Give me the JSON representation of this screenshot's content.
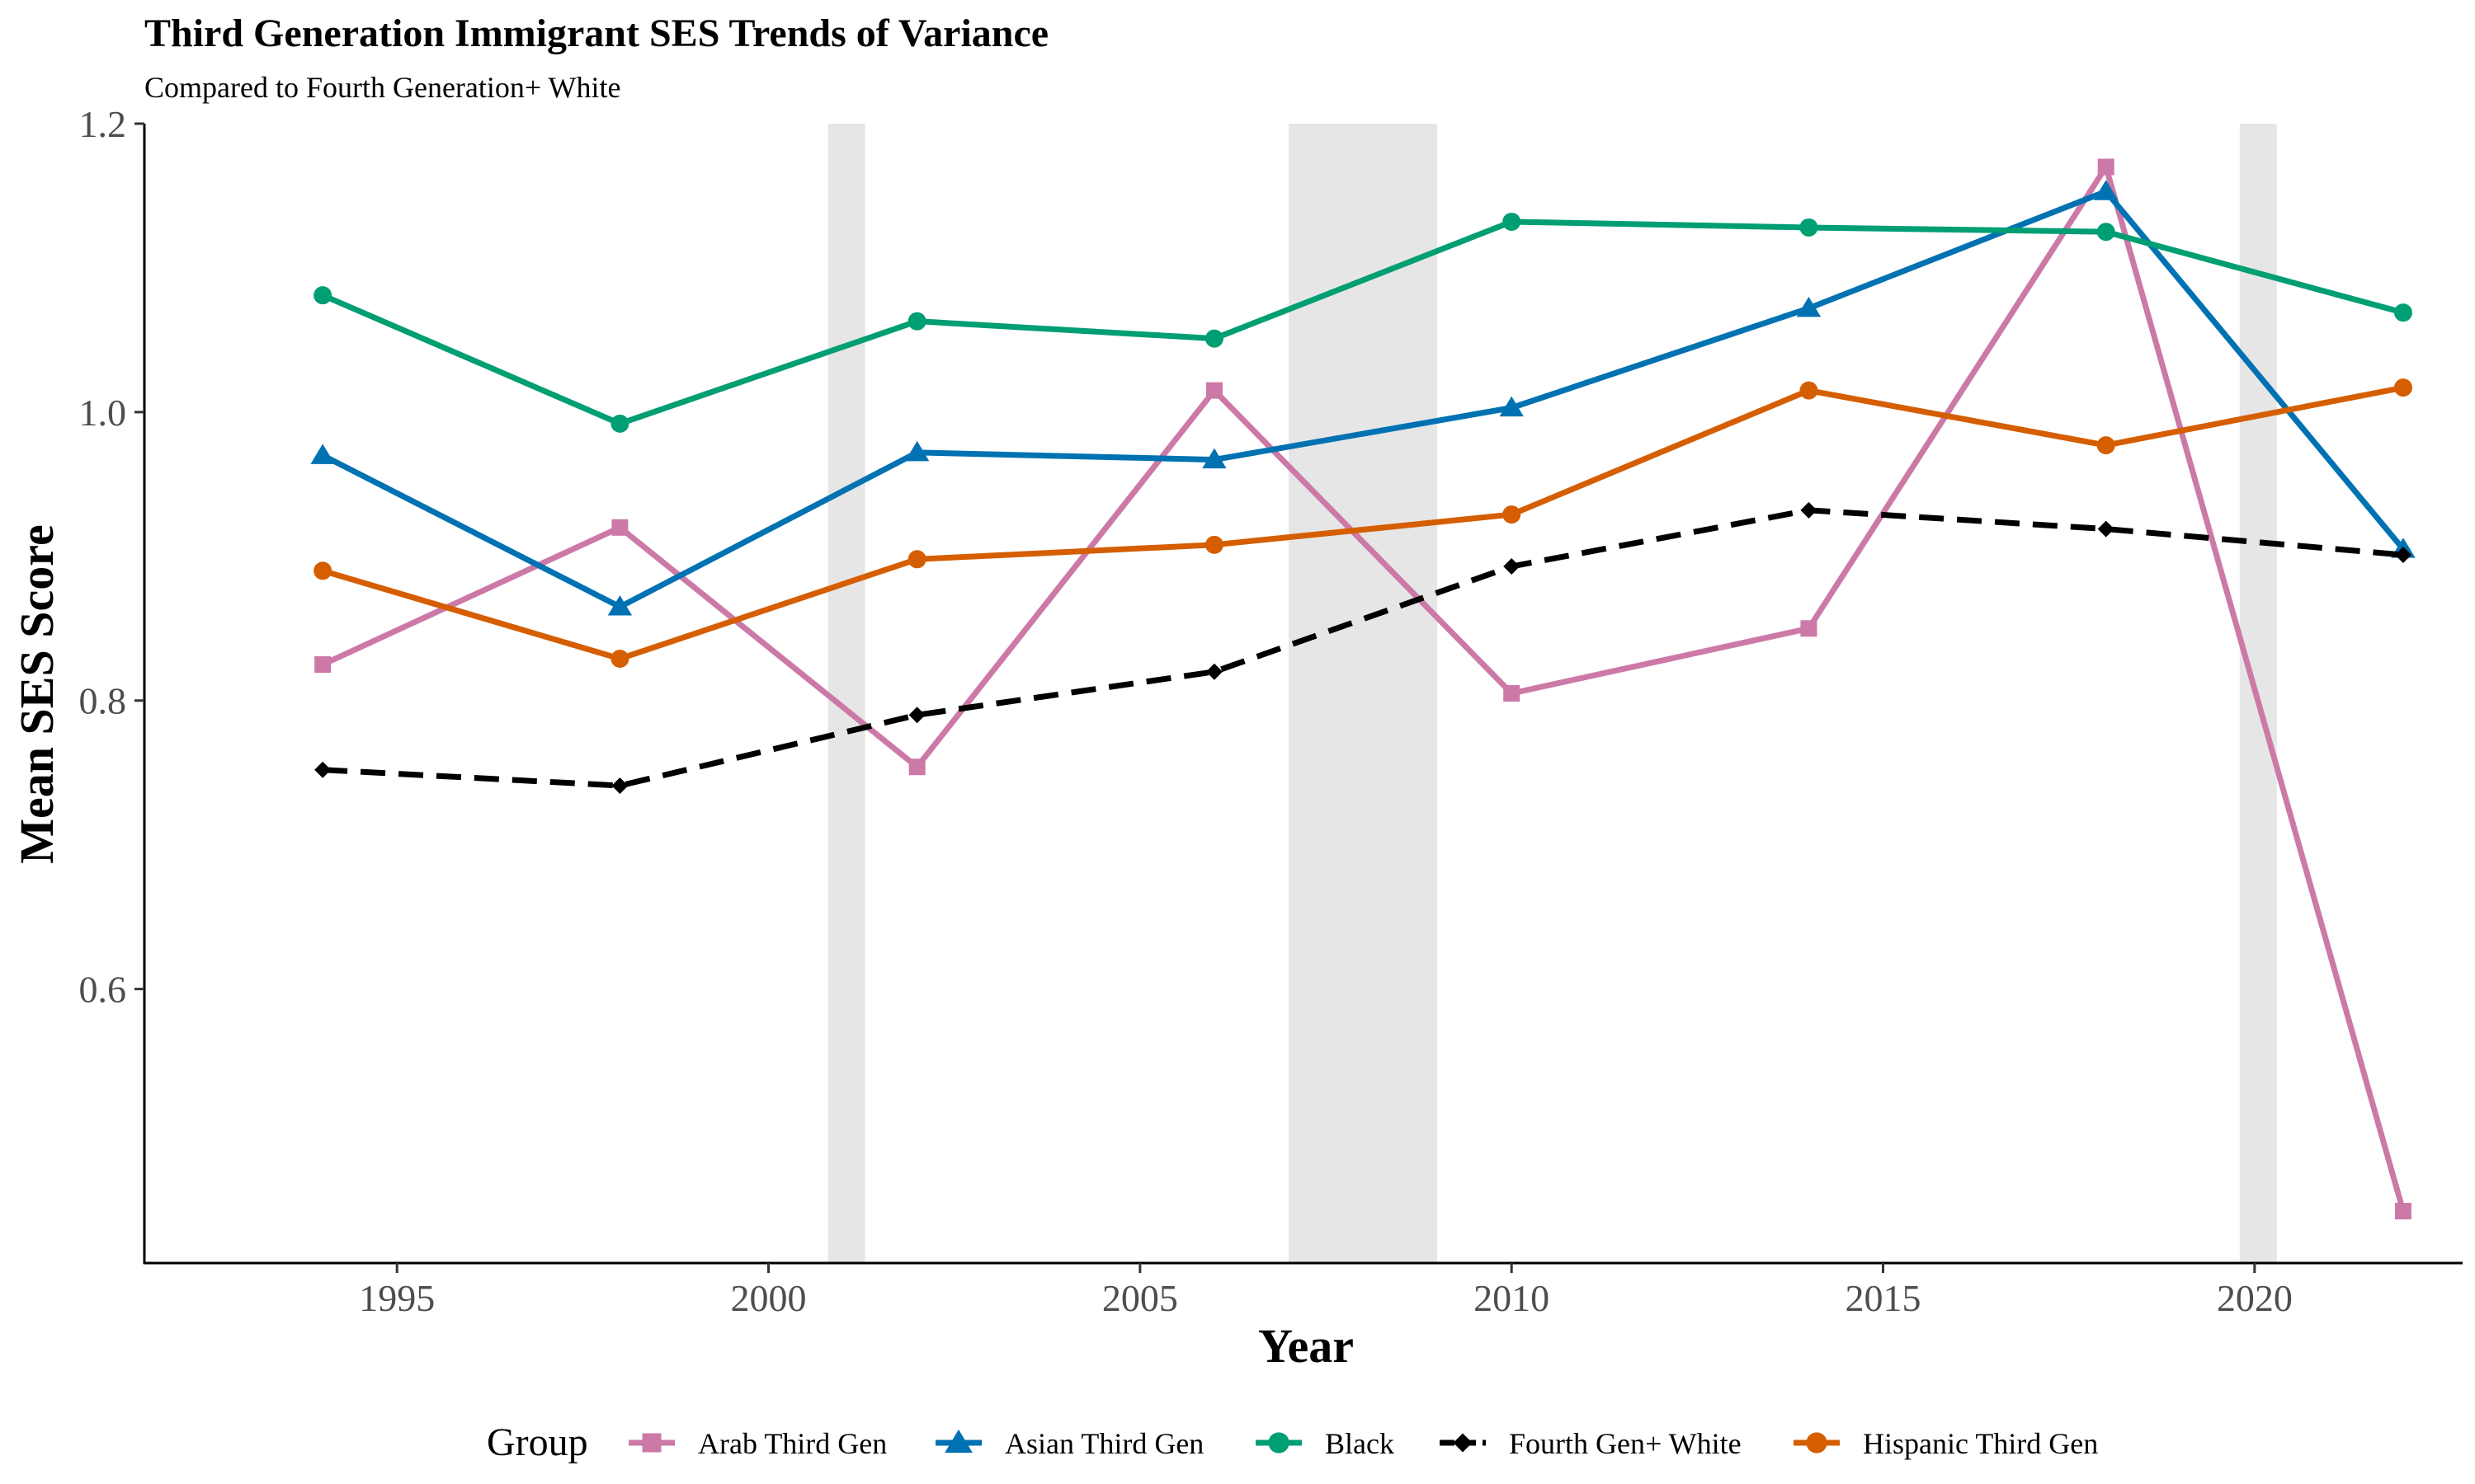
{
  "chart_data": {
    "type": "line",
    "title": "Third Generation Immigrant SES Trends of Variance",
    "subtitle": "Compared to Fourth Generation+ White",
    "xlabel": "Year",
    "ylabel": "Mean SES Score",
    "xlim": [
      1991.6,
      2022.8
    ],
    "ylim": [
      0.41,
      1.2
    ],
    "x_ticks": [
      "1995",
      "2000",
      "2005",
      "2010",
      "2015",
      "2020"
    ],
    "y_ticks": [
      "0.6",
      "0.8",
      "1.0",
      "1.2"
    ],
    "x": [
      1994,
      1998,
      2002,
      2006,
      2010,
      2014,
      2018,
      2022
    ],
    "shaded_periods": [
      [
        2000.8,
        2001.3
      ],
      [
        2007,
        2009
      ],
      [
        2019.8,
        2020.3
      ]
    ],
    "grid": false,
    "legend_position": "bottom",
    "legend_title": "Group",
    "series": [
      {
        "name": "Arab Third Gen",
        "color": "#CC79A7",
        "marker": "square",
        "dash": "solid",
        "values": [
          0.825,
          0.92,
          0.754,
          1.015,
          0.805,
          0.85,
          1.17,
          0.446
        ]
      },
      {
        "name": "Asian Third Gen",
        "color": "#0072B2",
        "marker": "triangle",
        "dash": "solid",
        "values": [
          0.97,
          0.865,
          0.972,
          0.967,
          1.003,
          1.072,
          1.153,
          0.905
        ]
      },
      {
        "name": "Black",
        "color": "#009E73",
        "marker": "circle",
        "dash": "solid",
        "values": [
          1.081,
          0.992,
          1.063,
          1.051,
          1.132,
          1.128,
          1.125,
          1.069
        ]
      },
      {
        "name": "Fourth Gen+ White",
        "color": "#000000",
        "marker": "diamond",
        "dash": "dashed",
        "values": [
          0.752,
          0.741,
          0.79,
          0.82,
          0.893,
          0.932,
          0.919,
          0.901
        ]
      },
      {
        "name": "Hispanic Third Gen",
        "color": "#D55E00",
        "marker": "circle",
        "dash": "solid",
        "values": [
          0.89,
          0.829,
          0.898,
          0.908,
          0.929,
          1.015,
          0.977,
          1.017
        ]
      }
    ]
  }
}
